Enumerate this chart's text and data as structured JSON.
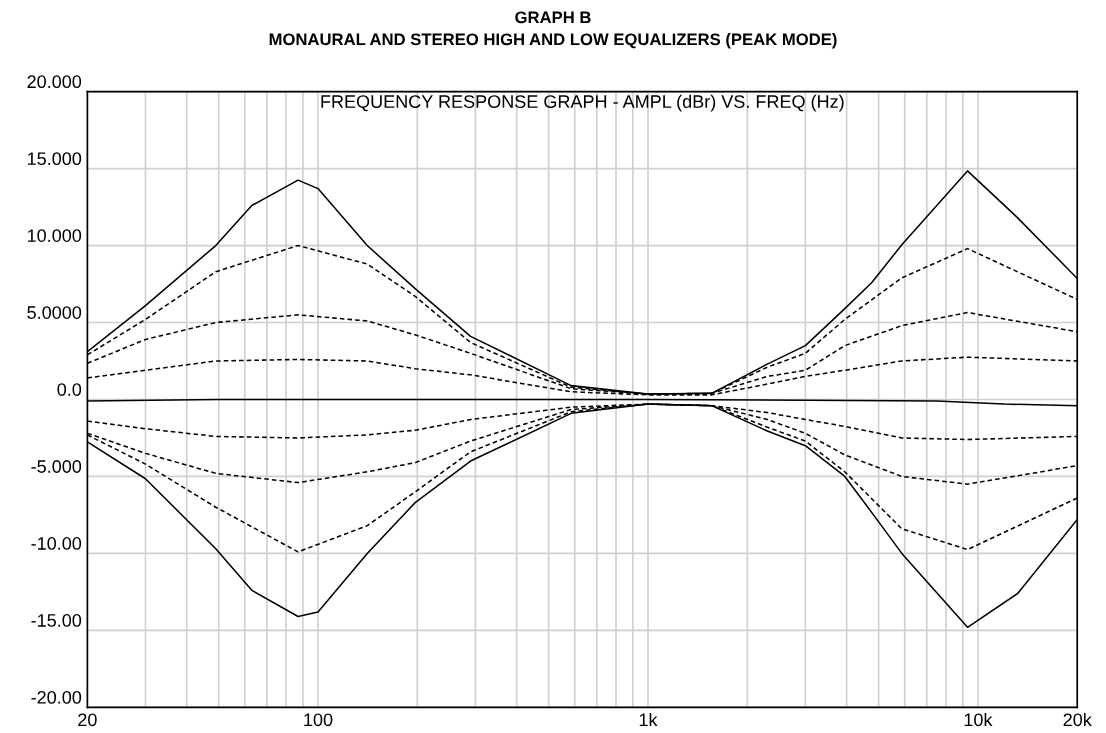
{
  "chart_data": {
    "type": "line",
    "title": "GRAPH B",
    "subtitle": "MONAURAL AND STEREO HIGH AND LOW EQUALIZERS (PEAK MODE)",
    "annotations": [
      "FREQUENCY RESPONSE GRAPH - AMPL (dBr) VS. FREQ (Hz)"
    ],
    "log": "x",
    "grid": true,
    "legend": false,
    "marker": "none",
    "xlim": [
      20,
      20000
    ],
    "ylim": [
      -20,
      20
    ],
    "xticks": [
      {
        "value": 20,
        "label": "20"
      },
      {
        "value": 30,
        "label": null
      },
      {
        "value": 40,
        "label": null
      },
      {
        "value": 50,
        "label": null
      },
      {
        "value": 60,
        "label": null
      },
      {
        "value": 70,
        "label": null
      },
      {
        "value": 80,
        "label": null
      },
      {
        "value": 90,
        "label": null
      },
      {
        "value": 100,
        "label": "100"
      },
      {
        "value": 200,
        "label": null
      },
      {
        "value": 300,
        "label": null
      },
      {
        "value": 400,
        "label": null
      },
      {
        "value": 500,
        "label": null
      },
      {
        "value": 600,
        "label": null
      },
      {
        "value": 700,
        "label": null
      },
      {
        "value": 800,
        "label": null
      },
      {
        "value": 900,
        "label": null
      },
      {
        "value": 1000,
        "label": "1k"
      },
      {
        "value": 2000,
        "label": null
      },
      {
        "value": 3000,
        "label": null
      },
      {
        "value": 4000,
        "label": null
      },
      {
        "value": 5000,
        "label": null
      },
      {
        "value": 6000,
        "label": null
      },
      {
        "value": 7000,
        "label": null
      },
      {
        "value": 8000,
        "label": null
      },
      {
        "value": 9000,
        "label": null
      },
      {
        "value": 10000,
        "label": "10k"
      },
      {
        "value": 20000,
        "label": "20k"
      }
    ],
    "yticks": [
      {
        "value": 20,
        "label": "20.000"
      },
      {
        "value": 15,
        "label": "15.000"
      },
      {
        "value": 10,
        "label": "10.000"
      },
      {
        "value": 5,
        "label": "5.0000"
      },
      {
        "value": 0,
        "label": "0.0"
      },
      {
        "value": -5,
        "label": "-5.000"
      },
      {
        "value": -10,
        "label": "-10.00"
      },
      {
        "value": -15,
        "label": "-15.00"
      },
      {
        "value": -20,
        "label": "-20.00"
      }
    ],
    "series": [
      {
        "color": "#000000",
        "line_style": "solid",
        "x": [
          20,
          30,
          49,
          63,
          87,
          100,
          141,
          197,
          290,
          585,
          1000,
          1560,
          2300,
          3000,
          3950,
          4770,
          5880,
          9300,
          13200,
          20000
        ],
        "values": [
          3.1,
          6.1,
          10.0,
          12.6,
          14.25,
          13.7,
          10.0,
          7.2,
          4.1,
          0.9,
          0.35,
          0.4,
          2.3,
          3.5,
          5.9,
          7.6,
          10.05,
          14.85,
          11.8,
          7.86
        ]
      },
      {
        "color": "#000000",
        "line_style": "dashed",
        "x": [
          20,
          30,
          49,
          87,
          141,
          197,
          290,
          585,
          1000,
          1560,
          2300,
          3000,
          3950,
          5880,
          9300,
          20000
        ],
        "values": [
          2.9,
          5.2,
          8.3,
          10.0,
          8.8,
          6.7,
          3.7,
          0.8,
          0.35,
          0.4,
          2.1,
          3.0,
          5.2,
          7.9,
          9.8,
          6.5
        ]
      },
      {
        "color": "#000000",
        "line_style": "dashed",
        "x": [
          20,
          30,
          49,
          87,
          141,
          197,
          290,
          585,
          1000,
          1560,
          2300,
          3000,
          3950,
          5880,
          9300,
          20000
        ],
        "values": [
          2.35,
          3.9,
          5.0,
          5.5,
          5.1,
          4.2,
          3.0,
          0.7,
          0.35,
          0.4,
          1.5,
          1.9,
          3.5,
          4.8,
          5.65,
          4.4
        ]
      },
      {
        "color": "#000000",
        "line_style": "dashed",
        "x": [
          20,
          30,
          49,
          87,
          141,
          197,
          290,
          585,
          1000,
          1560,
          2300,
          3000,
          3950,
          5880,
          9300,
          20000
        ],
        "values": [
          1.4,
          1.9,
          2.5,
          2.6,
          2.5,
          2.0,
          1.6,
          0.5,
          0.3,
          0.3,
          1.0,
          1.5,
          1.9,
          2.5,
          2.75,
          2.5
        ]
      },
      {
        "color": "#000000",
        "line_style": "solid",
        "x": [
          20,
          49,
          1000,
          7500,
          12000,
          20000
        ],
        "values": [
          -0.1,
          0,
          0,
          -0.1,
          -0.3,
          -0.4
        ]
      },
      {
        "color": "#000000",
        "line_style": "dashed",
        "x": [
          20,
          30,
          49,
          87,
          141,
          197,
          290,
          585,
          1000,
          1560,
          2300,
          3000,
          3950,
          5880,
          9300,
          20000
        ],
        "values": [
          -1.4,
          -1.9,
          -2.4,
          -2.5,
          -2.3,
          -2.0,
          -1.3,
          -0.5,
          -0.3,
          -0.4,
          -0.85,
          -1.3,
          -1.75,
          -2.5,
          -2.6,
          -2.4
        ]
      },
      {
        "color": "#000000",
        "line_style": "dashed",
        "x": [
          20,
          30,
          49,
          87,
          141,
          197,
          290,
          585,
          1000,
          1560,
          2300,
          3000,
          3950,
          5880,
          9300,
          20000
        ],
        "values": [
          -2.2,
          -3.5,
          -4.8,
          -5.4,
          -4.7,
          -4.1,
          -2.7,
          -0.65,
          -0.3,
          -0.4,
          -1.3,
          -2.2,
          -3.6,
          -5.0,
          -5.5,
          -4.3
        ]
      },
      {
        "color": "#000000",
        "line_style": "dashed",
        "x": [
          20,
          30,
          49,
          87,
          141,
          197,
          290,
          585,
          1000,
          1560,
          2300,
          3000,
          3950,
          5880,
          9300,
          20000
        ],
        "values": [
          -2.3,
          -4.2,
          -7.0,
          -9.9,
          -8.2,
          -6.0,
          -3.4,
          -0.8,
          -0.3,
          -0.4,
          -1.8,
          -2.7,
          -4.7,
          -8.4,
          -9.75,
          -6.4
        ]
      },
      {
        "color": "#000000",
        "line_style": "solid",
        "x": [
          20,
          30,
          49,
          63,
          87,
          100,
          141,
          197,
          290,
          585,
          1000,
          1560,
          2300,
          3000,
          3950,
          4770,
          5880,
          9300,
          13200,
          20000
        ],
        "values": [
          -2.75,
          -5.15,
          -9.7,
          -12.4,
          -14.1,
          -13.8,
          -10.0,
          -6.7,
          -4.0,
          -0.9,
          -0.3,
          -0.4,
          -2.05,
          -3.0,
          -5.0,
          -7.35,
          -10.0,
          -14.8,
          -12.6,
          -7.8
        ]
      }
    ]
  }
}
